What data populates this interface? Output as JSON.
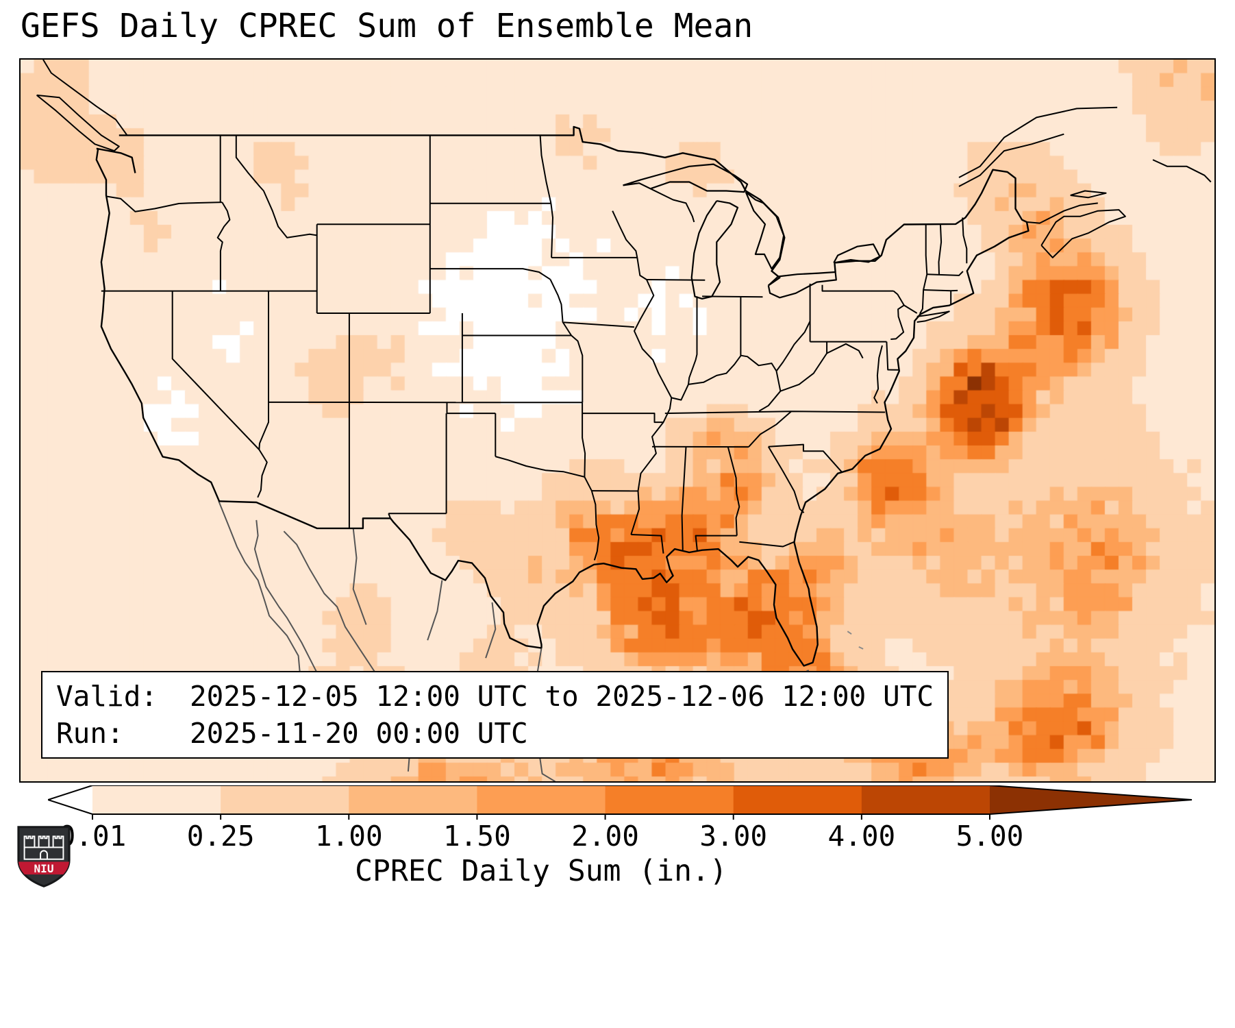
{
  "title": "GEFS Daily CPREC Sum of Ensemble Mean",
  "info_box": {
    "valid_label": "Valid:",
    "valid_value": "2025-12-05 12:00 UTC to 2025-12-06 12:00 UTC",
    "run_label": "Run:",
    "run_value": "2025-11-20 00:00 UTC"
  },
  "colorbar": {
    "label": "CPREC Daily Sum (in.)",
    "ticks": [
      "0.01",
      "0.25",
      "1.00",
      "1.50",
      "2.00",
      "3.00",
      "4.00",
      "5.00"
    ],
    "levels": [
      0.01,
      0.25,
      1.0,
      1.5,
      2.0,
      3.0,
      4.0,
      5.0
    ],
    "under_color": "#ffffff",
    "segment_colors": [
      "#fee8d4",
      "#fdd2ac",
      "#fdb97e",
      "#fd9e53",
      "#f57f28",
      "#e05c09",
      "#bc4604"
    ],
    "over_color": "#8c3103"
  },
  "logo": {
    "text": "NIU",
    "shield_color": "#2e3033",
    "band_color": "#c01933"
  },
  "map": {
    "line_color": "#000000",
    "foreign_line_color": "#8a8a8a",
    "field_base": 0.07,
    "field_blobs": [
      {
        "lon": -91.5,
        "lat": 30.3,
        "sx": 3.2,
        "sy": 2.0,
        "amp": 2.3
      },
      {
        "lon": -87.5,
        "lat": 31.3,
        "sx": 2.6,
        "sy": 2.2,
        "amp": 2.0
      },
      {
        "lon": -84.3,
        "lat": 33.4,
        "sx": 2.2,
        "sy": 1.6,
        "amp": 1.5
      },
      {
        "lon": -89.0,
        "lat": 27.0,
        "sx": 4.5,
        "sy": 2.2,
        "amp": 2.6
      },
      {
        "lon": -83.0,
        "lat": 27.3,
        "sx": 2.6,
        "sy": 2.4,
        "amp": 2.4
      },
      {
        "lon": -80.5,
        "lat": 24.3,
        "sx": 3.0,
        "sy": 1.8,
        "amp": 2.2
      },
      {
        "lon": -86.0,
        "lat": 35.3,
        "sx": 2.4,
        "sy": 1.1,
        "amp": 1.1
      },
      {
        "lon": -94.5,
        "lat": 31.5,
        "sx": 2.6,
        "sy": 2.2,
        "amp": 1.0
      },
      {
        "lon": -97.5,
        "lat": 29.0,
        "sx": 2.0,
        "sy": 1.6,
        "amp": 0.7
      },
      {
        "lon": -75.5,
        "lat": 33.5,
        "sx": 2.6,
        "sy": 2.0,
        "amp": 2.6
      },
      {
        "lon": -70.0,
        "lat": 37.0,
        "sx": 2.8,
        "sy": 2.2,
        "amp": 4.8
      },
      {
        "lon": -64.5,
        "lat": 41.0,
        "sx": 3.4,
        "sy": 2.8,
        "amp": 3.0
      },
      {
        "lon": -79.5,
        "lat": 29.5,
        "sx": 2.2,
        "sy": 2.0,
        "amp": 1.6
      },
      {
        "lon": -72.0,
        "lat": 30.0,
        "sx": 4.0,
        "sy": 3.0,
        "amp": 1.2
      },
      {
        "lon": -63.0,
        "lat": 30.0,
        "sx": 5.0,
        "sy": 4.5,
        "amp": 1.6
      },
      {
        "lon": -65.0,
        "lat": 22.5,
        "sx": 4.0,
        "sy": 2.5,
        "amp": 2.6
      },
      {
        "lon": -74.0,
        "lat": 21.0,
        "sx": 5.0,
        "sy": 2.0,
        "amp": 1.8
      },
      {
        "lon": -90.0,
        "lat": 20.5,
        "sx": 6.0,
        "sy": 2.0,
        "amp": 1.7
      },
      {
        "lon": -103.0,
        "lat": 20.0,
        "sx": 5.0,
        "sy": 1.8,
        "amp": 1.5
      },
      {
        "lon": -106.2,
        "lat": 23.3,
        "sx": 1.6,
        "sy": 1.4,
        "amp": 1.0
      },
      {
        "lon": -110.6,
        "lat": 23.8,
        "sx": 1.2,
        "sy": 1.0,
        "amp": 0.8
      },
      {
        "lon": -87.8,
        "lat": 47.6,
        "sx": 2.2,
        "sy": 1.2,
        "amp": 0.45
      },
      {
        "lon": -95.0,
        "lat": 48.8,
        "sx": 2.6,
        "sy": 1.5,
        "amp": 0.3
      },
      {
        "lon": -123.2,
        "lat": 47.8,
        "sx": 1.8,
        "sy": 1.8,
        "amp": 0.32
      },
      {
        "lon": -121.0,
        "lat": 44.5,
        "sx": 2.2,
        "sy": 2.0,
        "amp": 0.22
      },
      {
        "lon": -110.0,
        "lat": 38.2,
        "sx": 2.2,
        "sy": 2.0,
        "amp": 0.3
      },
      {
        "lon": -106.6,
        "lat": 39.0,
        "sx": 1.4,
        "sy": 1.4,
        "amp": 0.3
      },
      {
        "lon": -101.0,
        "lat": 30.8,
        "sx": 2.6,
        "sy": 2.0,
        "amp": 0.4
      },
      {
        "lon": -113.5,
        "lat": 47.5,
        "sx": 2.5,
        "sy": 1.8,
        "amp": 0.3
      },
      {
        "lon": -69.0,
        "lat": 47.0,
        "sx": 2.2,
        "sy": 1.6,
        "amp": 0.55
      },
      {
        "lon": -108.4,
        "lat": 27.0,
        "sx": 1.8,
        "sy": 1.8,
        "amp": 0.6
      },
      {
        "lon": -100.0,
        "lat": 24.5,
        "sx": 2.2,
        "sy": 2.0,
        "amp": 0.5
      },
      {
        "lon": -128.0,
        "lat": 49.5,
        "sx": 3.0,
        "sy": 3.0,
        "amp": 0.5
      },
      {
        "lon": -56.5,
        "lat": 51.5,
        "sx": 3.0,
        "sy": 2.5,
        "amp": 1.1
      },
      {
        "lon": -66.5,
        "lat": 45.5,
        "sx": 2.5,
        "sy": 2.0,
        "amp": 0.9
      },
      {
        "lon": -100.0,
        "lat": 41.5,
        "sx": 5.0,
        "sy": 3.0,
        "amp": -0.1
      },
      {
        "lon": -98.0,
        "lat": 37.5,
        "sx": 4.0,
        "sy": 2.5,
        "amp": -0.08
      },
      {
        "lon": -120.0,
        "lat": 36.5,
        "sx": 2.0,
        "sy": 1.5,
        "amp": -0.1
      },
      {
        "lon": -116.0,
        "lat": 40.5,
        "sx": 3.0,
        "sy": 2.5,
        "amp": -0.07
      },
      {
        "lon": -97.0,
        "lat": 45.5,
        "sx": 4.0,
        "sy": 2.5,
        "amp": -0.06
      },
      {
        "lon": -89.5,
        "lat": 41.0,
        "sx": 3.5,
        "sy": 2.5,
        "amp": -0.06
      }
    ]
  }
}
